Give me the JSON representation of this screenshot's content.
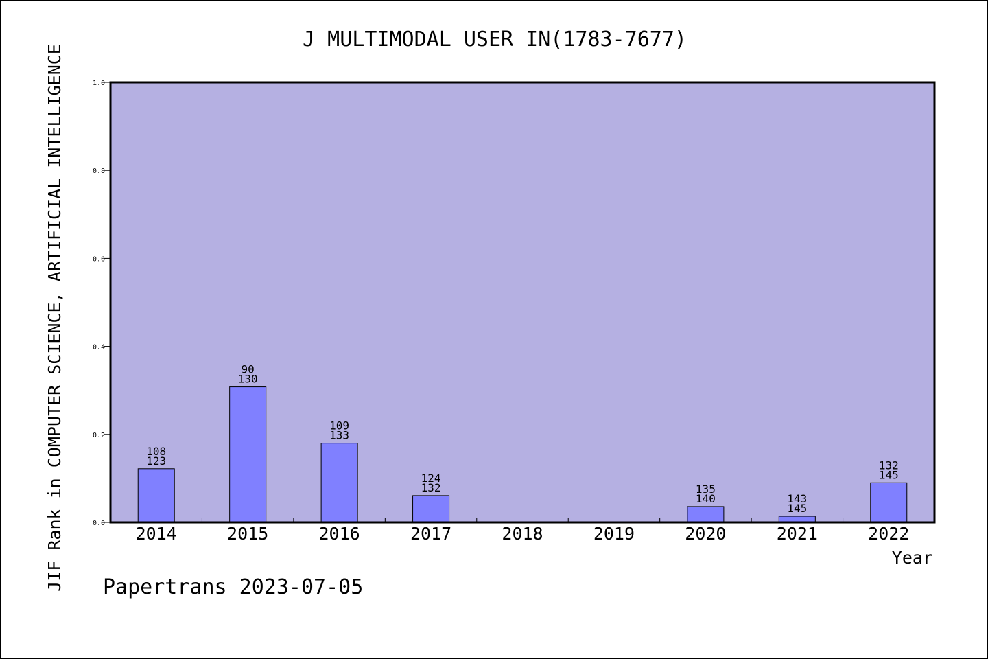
{
  "chart_data": {
    "type": "bar",
    "title": "J MULTIMODAL USER IN(1783-7677)",
    "xlabel": "Year",
    "ylabel": "JIF Rank in COMPUTER SCIENCE, ARTIFICIAL INTELLIGENCE",
    "footer": "Papertrans 2023-07-05",
    "categories": [
      "2014",
      "2015",
      "2016",
      "2017",
      "2018",
      "2019",
      "2020",
      "2021",
      "2022"
    ],
    "values": [
      0.122,
      0.308,
      0.18,
      0.061,
      null,
      null,
      0.036,
      0.014,
      0.09
    ],
    "rank": [
      108,
      90,
      109,
      124,
      null,
      null,
      135,
      143,
      132
    ],
    "total": [
      123,
      130,
      133,
      132,
      null,
      null,
      140,
      145,
      145
    ],
    "ylim": [
      0,
      1.0
    ],
    "yticks": [
      "0.0",
      "0.2",
      "0.4",
      "0.6",
      "0.8",
      "1.0"
    ],
    "grid": false,
    "colors": {
      "plot_background": "#b5b0e2",
      "bar_fill": "#8080ff",
      "bar_stroke": "#000000",
      "frame": "#000000"
    }
  }
}
